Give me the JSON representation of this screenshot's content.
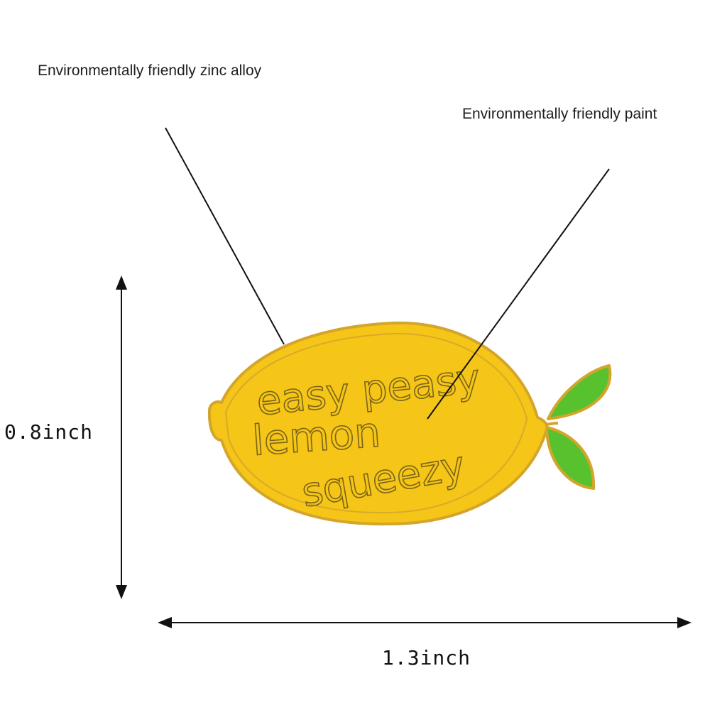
{
  "callouts": {
    "zinc_alloy": "Environmentally friendly zinc alloy",
    "paint": "Environmentally friendly paint"
  },
  "dimensions": {
    "height": "0.8inch",
    "width": "1.3inch"
  },
  "pin": {
    "lettering": [
      "easy peasy",
      "lemon",
      "squeezy"
    ],
    "colors": {
      "lemon_fill": "#F5C518",
      "lemon_outline": "#D4A52B",
      "leaf_fill": "#58C22E",
      "lettering": "#7A6418"
    }
  }
}
